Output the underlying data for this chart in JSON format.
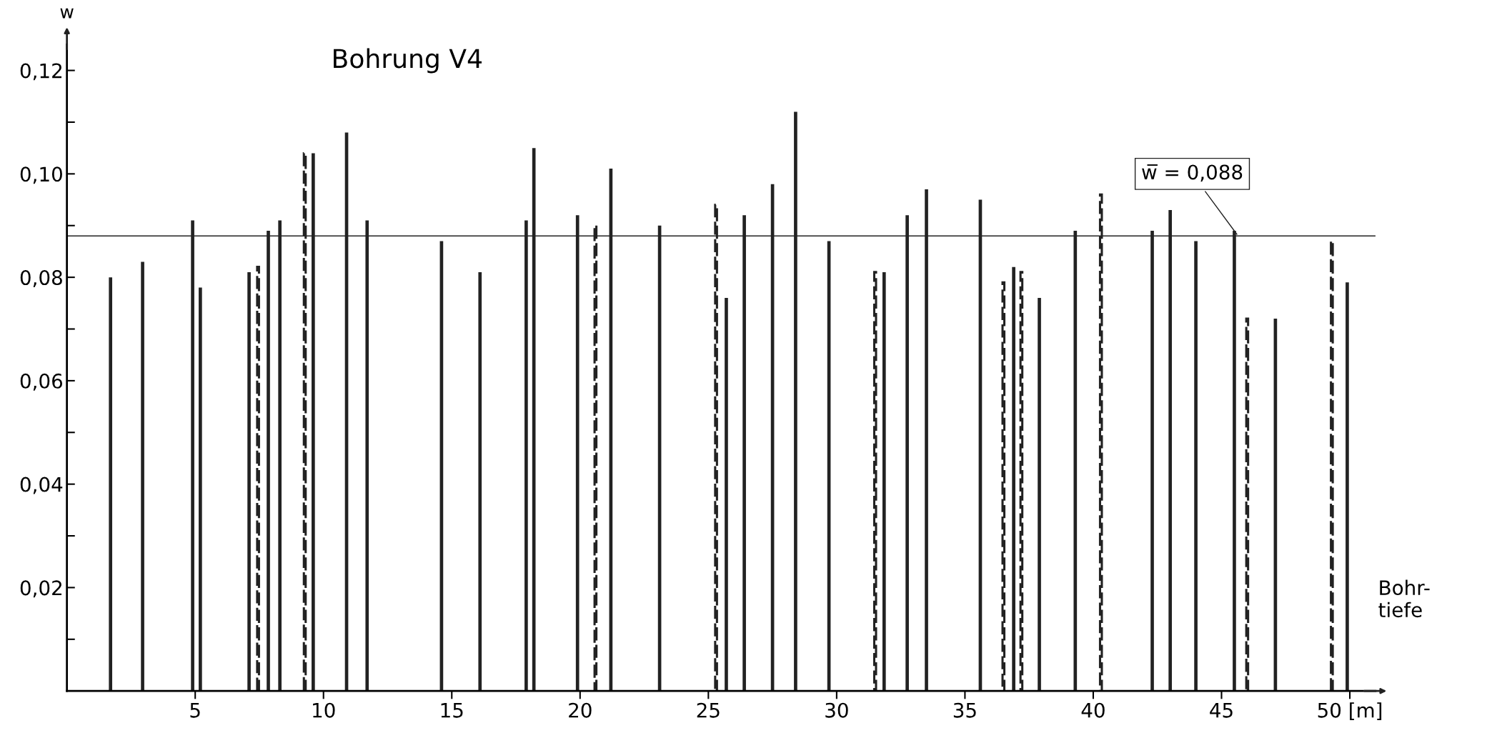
{
  "chart_data": {
    "type": "bar",
    "title": "Bohrung V4",
    "xlabel": "Bohr-\ntiefe",
    "ylabel": "w",
    "xlim": [
      0,
      51
    ],
    "ylim": [
      0,
      0.125
    ],
    "xticks": [
      5,
      10,
      15,
      20,
      25,
      30,
      35,
      40,
      45,
      {
        "value": 50,
        "label": "50 [m]"
      }
    ],
    "yticks": [
      {
        "value": 0.01,
        "label": null
      },
      {
        "value": 0.02,
        "label": "0,02"
      },
      {
        "value": 0.03,
        "label": null
      },
      {
        "value": 0.04,
        "label": "0,04"
      },
      {
        "value": 0.05,
        "label": null
      },
      {
        "value": 0.06,
        "label": "0,06"
      },
      {
        "value": 0.07,
        "label": null
      },
      {
        "value": 0.08,
        "label": "0,08"
      },
      {
        "value": 0.09,
        "label": null
      },
      {
        "value": 0.1,
        "label": "0,10"
      },
      {
        "value": 0.11,
        "label": null
      },
      {
        "value": 0.12,
        "label": "0,12"
      }
    ],
    "series": [
      {
        "color": "#222222",
        "line_style": "solid",
        "x": [
          1.7,
          2.95,
          4.9,
          5.2,
          7.1,
          7.85,
          8.3,
          9.6,
          10.9,
          11.7,
          14.6,
          16.1,
          17.9,
          18.2,
          19.9,
          21.2,
          23.1,
          25.7,
          26.4,
          27.5,
          28.4,
          29.7,
          31.85,
          32.75,
          33.5,
          35.6,
          36.9,
          37.9,
          39.3,
          42.3,
          43.0,
          44.0,
          45.5,
          47.1,
          49.9
        ],
        "values": [
          0.08,
          0.083,
          0.091,
          0.078,
          0.081,
          0.089,
          0.091,
          0.104,
          0.108,
          0.091,
          0.087,
          0.081,
          0.091,
          0.105,
          0.092,
          0.101,
          0.09,
          0.076,
          0.092,
          0.098,
          0.112,
          0.087,
          0.081,
          0.092,
          0.097,
          0.095,
          0.082,
          0.076,
          0.089,
          0.089,
          0.093,
          0.087,
          0.089,
          0.072,
          0.079
        ]
      },
      {
        "color": "#222222",
        "line_style": "dashed",
        "x": [
          7.45,
          9.27,
          20.6,
          25.3,
          31.5,
          36.5,
          37.2,
          40.3,
          46.0,
          49.3
        ],
        "values": [
          0.082,
          0.104,
          0.09,
          0.094,
          0.081,
          0.079,
          0.081,
          0.096,
          0.072,
          0.087
        ]
      }
    ],
    "ref_lines": [
      {
        "axis": "y",
        "value": 0.088,
        "label": "w̅ = 0,088",
        "color": "#222222",
        "line_style": "solid"
      }
    ],
    "grid": false,
    "legend": false
  }
}
